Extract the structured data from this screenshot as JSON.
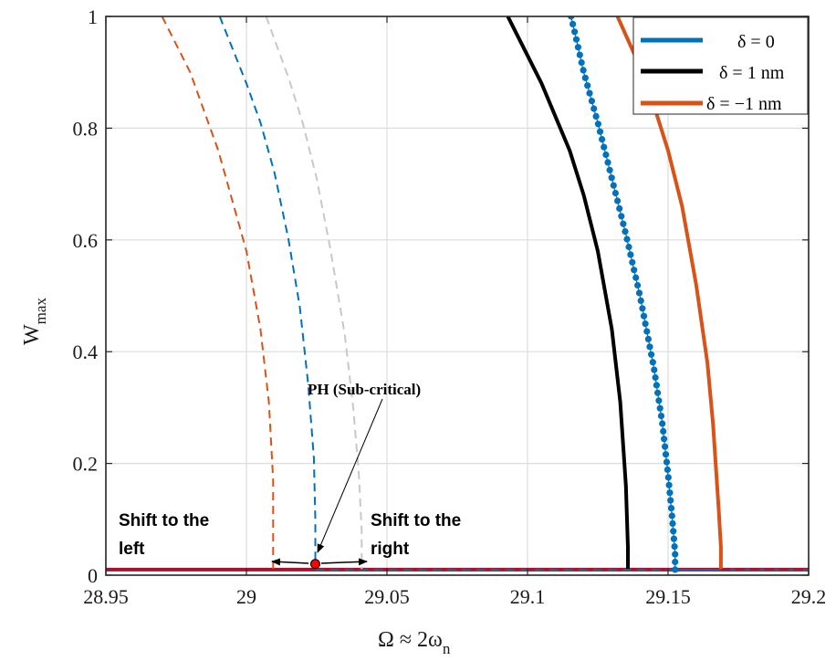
{
  "chart_data": {
    "type": "line",
    "title": "",
    "xlabel": "Ω ≈ 2ω_n",
    "xlabel_main": "Ω ≈ 2ω",
    "xlabel_sub": "n",
    "ylabel": "W_max",
    "ylabel_main": "W",
    "ylabel_sub": "max",
    "xlim": [
      28.95,
      29.2
    ],
    "ylim": [
      0,
      1
    ],
    "xticks": [
      "28.95",
      "29",
      "29.05",
      "29.1",
      "29.15",
      "29.2"
    ],
    "yticks": [
      "0",
      "0.2",
      "0.4",
      "0.6",
      "0.8",
      "1"
    ],
    "grid": true,
    "legend_position": "top-right",
    "colors": {
      "blue": "#0072BD",
      "black": "#000000",
      "orange": "#D95319",
      "gray": "#C8C8C8",
      "baseline": "#A2142F",
      "marker": "#FF0000"
    },
    "series": [
      {
        "name": "δ = 0",
        "legend_main": "δ = 0",
        "color": "#0072BD",
        "style": "solid-dotted",
        "x": [
          29.1155,
          29.12,
          29.125,
          29.13,
          29.135,
          29.14,
          29.145,
          29.148,
          29.15,
          29.1515,
          29.1525,
          29.1525
        ],
        "y": [
          1.0,
          0.9,
          0.81,
          0.71,
          0.61,
          0.5,
          0.37,
          0.27,
          0.18,
          0.1,
          0.04,
          0.01
        ]
      },
      {
        "name": "δ = 1 nm",
        "legend_main": "δ = 1 nm",
        "color": "#000000",
        "style": "solid",
        "x": [
          29.093,
          29.1,
          29.105,
          29.11,
          29.115,
          29.12,
          29.125,
          29.13,
          29.133,
          29.135,
          29.1357,
          29.1357
        ],
        "y": [
          1.0,
          0.93,
          0.88,
          0.82,
          0.76,
          0.68,
          0.58,
          0.44,
          0.31,
          0.16,
          0.05,
          0.01
        ]
      },
      {
        "name": "δ = −1 nm",
        "legend_main": "δ = −1 nm",
        "color": "#D95319",
        "style": "solid",
        "x": [
          29.132,
          29.14,
          29.145,
          29.15,
          29.155,
          29.16,
          29.164,
          29.166,
          29.168,
          29.1688,
          29.1688
        ],
        "y": [
          1.0,
          0.91,
          0.84,
          0.76,
          0.66,
          0.52,
          0.38,
          0.27,
          0.12,
          0.05,
          0.01
        ]
      },
      {
        "color": "#D95319",
        "style": "dashed",
        "x": [
          28.97,
          28.98,
          28.99,
          29.0,
          29.005,
          29.008,
          29.0095,
          29.0095
        ],
        "y": [
          1.0,
          0.9,
          0.76,
          0.58,
          0.44,
          0.31,
          0.17,
          0.01
        ]
      },
      {
        "color": "#0072BD",
        "style": "dashed",
        "x": [
          28.9905,
          29.0,
          29.005,
          29.01,
          29.015,
          29.019,
          29.022,
          29.024,
          29.0245,
          29.0245
        ],
        "y": [
          1.0,
          0.88,
          0.81,
          0.72,
          0.6,
          0.48,
          0.34,
          0.21,
          0.1,
          0.01
        ]
      },
      {
        "color": "#C8C8C8",
        "style": "dashed",
        "x": [
          29.007,
          29.015,
          29.02,
          29.025,
          29.03,
          29.035,
          29.038,
          29.04,
          29.041,
          29.041
        ],
        "y": [
          1.0,
          0.89,
          0.81,
          0.71,
          0.58,
          0.43,
          0.3,
          0.18,
          0.08,
          0.01
        ]
      },
      {
        "color": "#A2142F",
        "style": "baseline",
        "x": [
          28.95,
          29.2
        ],
        "y": [
          0.01,
          0.01
        ]
      }
    ],
    "point": {
      "x": 29.0245,
      "y": 0.02,
      "label": "PH (Sub-critical)"
    },
    "annotations": {
      "left_line1": "Shift to the",
      "left_line2": "left",
      "right_line1": "Shift to the",
      "right_line2": "right",
      "ph": "PH (Sub-critical)"
    }
  }
}
